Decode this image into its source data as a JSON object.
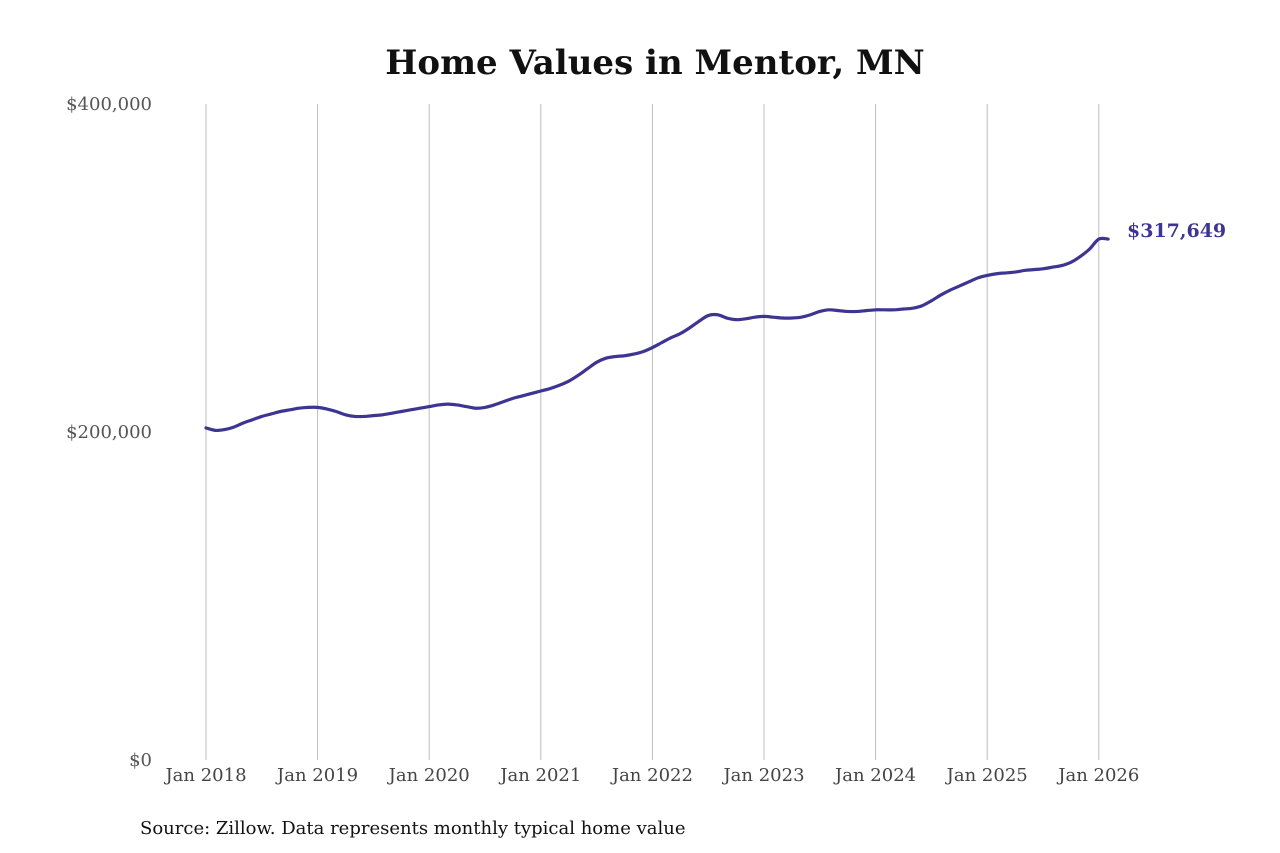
{
  "source_note": "Source: Zillow. Data represents monthly typical home value",
  "colors": {
    "line": "#3d3591",
    "grid": "#bdbdbd",
    "end_label": "#3d3591"
  },
  "chart_data": {
    "type": "line",
    "title": "Home Values in Mentor, MN",
    "xlabel": "",
    "ylabel": "",
    "ylim": [
      0,
      400000
    ],
    "xlim": [
      "2018-01",
      "2026-02"
    ],
    "y_ticks": [
      {
        "value": 0,
        "label": "$0"
      },
      {
        "value": 200000,
        "label": "$200,000"
      },
      {
        "value": 400000,
        "label": "$400,000"
      }
    ],
    "x_ticks": [
      {
        "value": "2018-01",
        "label": "Jan 2018"
      },
      {
        "value": "2019-01",
        "label": "Jan 2019"
      },
      {
        "value": "2020-01",
        "label": "Jan 2020"
      },
      {
        "value": "2021-01",
        "label": "Jan 2021"
      },
      {
        "value": "2022-01",
        "label": "Jan 2022"
      },
      {
        "value": "2023-01",
        "label": "Jan 2023"
      },
      {
        "value": "2024-01",
        "label": "Jan 2024"
      },
      {
        "value": "2025-01",
        "label": "Jan 2025"
      },
      {
        "value": "2026-01",
        "label": "Jan 2026"
      }
    ],
    "grid": {
      "vertical": true,
      "horizontal": false
    },
    "end_label": "$317,649",
    "series": [
      {
        "x": [
          "2018-01",
          "2018-02",
          "2018-03",
          "2018-04",
          "2018-05",
          "2018-06",
          "2018-07",
          "2018-08",
          "2018-09",
          "2018-10",
          "2018-11",
          "2018-12",
          "2019-01",
          "2019-02",
          "2019-03",
          "2019-04",
          "2019-05",
          "2019-06",
          "2019-07",
          "2019-08",
          "2019-09",
          "2019-10",
          "2019-11",
          "2019-12",
          "2020-01",
          "2020-02",
          "2020-03",
          "2020-04",
          "2020-05",
          "2020-06",
          "2020-07",
          "2020-08",
          "2020-09",
          "2020-10",
          "2020-11",
          "2020-12",
          "2021-01",
          "2021-02",
          "2021-03",
          "2021-04",
          "2021-05",
          "2021-06",
          "2021-07",
          "2021-08",
          "2021-09",
          "2021-10",
          "2021-11",
          "2021-12",
          "2022-01",
          "2022-02",
          "2022-03",
          "2022-04",
          "2022-05",
          "2022-06",
          "2022-07",
          "2022-08",
          "2022-09",
          "2022-10",
          "2022-11",
          "2022-12",
          "2023-01",
          "2023-02",
          "2023-03",
          "2023-04",
          "2023-05",
          "2023-06",
          "2023-07",
          "2023-08",
          "2023-09",
          "2023-10",
          "2023-11",
          "2023-12",
          "2024-01",
          "2024-02",
          "2024-03",
          "2024-04",
          "2024-05",
          "2024-06",
          "2024-07",
          "2024-08",
          "2024-09",
          "2024-10",
          "2024-11",
          "2024-12",
          "2025-01",
          "2025-02",
          "2025-03",
          "2025-04",
          "2025-05",
          "2025-06",
          "2025-07",
          "2025-08",
          "2025-09",
          "2025-10",
          "2025-11",
          "2025-12",
          "2026-01",
          "2026-02"
        ],
        "values": [
          202500,
          201000,
          201500,
          203000,
          205500,
          207500,
          209500,
          211000,
          212500,
          213500,
          214500,
          215000,
          215000,
          214000,
          212500,
          210500,
          209500,
          209500,
          210000,
          210500,
          211500,
          212500,
          213500,
          214500,
          215500,
          216500,
          217000,
          216500,
          215500,
          214500,
          215000,
          216500,
          218500,
          220500,
          222000,
          223500,
          225000,
          226500,
          228500,
          231000,
          234500,
          238500,
          242500,
          245000,
          246000,
          246500,
          247500,
          249000,
          251500,
          254500,
          257500,
          260000,
          263500,
          267500,
          271000,
          271500,
          269500,
          268500,
          269000,
          270000,
          270500,
          270000,
          269500,
          269500,
          270000,
          271500,
          273500,
          274500,
          274000,
          273500,
          273500,
          274000,
          274500,
          274500,
          274500,
          275000,
          275500,
          277000,
          280000,
          283500,
          286500,
          289000,
          291500,
          294000,
          295500,
          296500,
          297000,
          297500,
          298500,
          299000,
          299500,
          300500,
          301500,
          303500,
          307000,
          311500,
          317649,
          317649
        ]
      }
    ]
  }
}
